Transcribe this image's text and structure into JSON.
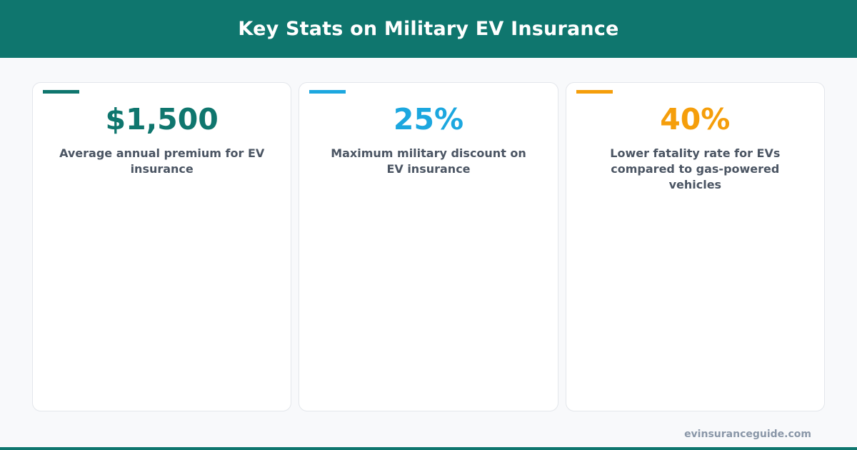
{
  "header": {
    "title": "Key Stats on Military EV Insurance"
  },
  "stats": [
    {
      "value": "$1,500",
      "label": "Average annual premium for EV insurance",
      "color": "#0f766e"
    },
    {
      "value": "25%",
      "label": "Maximum military discount on EV insurance",
      "color": "#1ca7df"
    },
    {
      "value": "40%",
      "label": "Lower fatality rate for EVs compared to gas-powered vehicles",
      "color": "#f59e0b"
    }
  ],
  "footer": {
    "site": "evinsuranceguide.com"
  }
}
